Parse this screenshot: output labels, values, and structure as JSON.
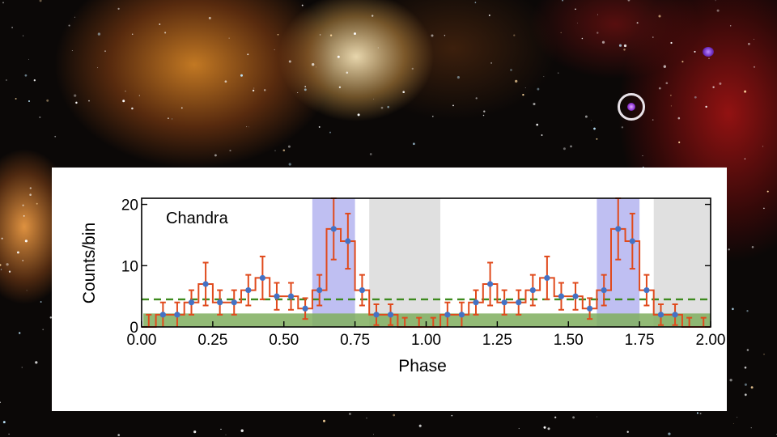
{
  "background": {
    "description_colors": {
      "nebula_orange": "#e28c28",
      "nebula_red": "#aa1414",
      "target_marker": "#e8e2e8",
      "target_star": "#b060e8"
    }
  },
  "chart_data": {
    "type": "line",
    "annotation": "Chandra",
    "xlabel": "Phase",
    "ylabel": "Counts/bin",
    "xlim": [
      0.0,
      2.0
    ],
    "ylim": [
      0,
      21
    ],
    "x_ticks": [
      "0.00",
      "0.25",
      "0.50",
      "0.75",
      "1.00",
      "1.25",
      "1.50",
      "1.75",
      "2.00"
    ],
    "y_ticks": [
      "0",
      "10",
      "20"
    ],
    "colors": {
      "line": "#e04a1c",
      "errorbar": "#e04a1c",
      "marker": "#4472c4",
      "pulse_band": "#bfbff2",
      "offpulse_band": "#e0e0e0",
      "background_band": "#7fae5e",
      "background_level": "#3d8a1e"
    },
    "bin_width": 0.05,
    "x": [
      0.025,
      0.075,
      0.125,
      0.175,
      0.225,
      0.275,
      0.325,
      0.375,
      0.425,
      0.475,
      0.525,
      0.575,
      0.625,
      0.675,
      0.725,
      0.775,
      0.825,
      0.875,
      0.925,
      0.975,
      1.025,
      1.075,
      1.125,
      1.175,
      1.225,
      1.275,
      1.325,
      1.375,
      1.425,
      1.475,
      1.525,
      1.575,
      1.625,
      1.675,
      1.725,
      1.775,
      1.825,
      1.875,
      1.925,
      1.975
    ],
    "y": [
      0,
      2,
      2,
      4,
      7,
      4,
      4,
      6,
      8,
      5,
      5,
      3,
      6,
      16,
      14,
      6,
      2,
      2,
      0,
      0,
      0,
      2,
      2,
      4,
      7,
      4,
      4,
      6,
      8,
      5,
      5,
      3,
      6,
      16,
      14,
      6,
      2,
      2,
      0,
      0
    ],
    "y_err": [
      2,
      2,
      2,
      2,
      3.5,
      2,
      2,
      2.5,
      3.5,
      2.2,
      2.2,
      1.7,
      2.5,
      5,
      4.5,
      2.5,
      1.7,
      1.7,
      1.5,
      1.5,
      1.5,
      2,
      2,
      2,
      3.5,
      2,
      2,
      2.5,
      3.5,
      2.2,
      2.2,
      1.7,
      2.5,
      5,
      4.5,
      2.5,
      1.7,
      1.7,
      1.5,
      1.5
    ],
    "bands": {
      "pulse": [
        [
          0.6,
          0.75
        ],
        [
          1.6,
          1.75
        ]
      ],
      "offpulse": [
        [
          0.8,
          1.05
        ],
        [
          1.8,
          2.0
        ]
      ],
      "background_fill": {
        "x": [
          0.0,
          2.0
        ],
        "y": [
          0,
          2.2
        ]
      }
    },
    "background_level": 4.5,
    "grid": false,
    "legend": "none"
  }
}
